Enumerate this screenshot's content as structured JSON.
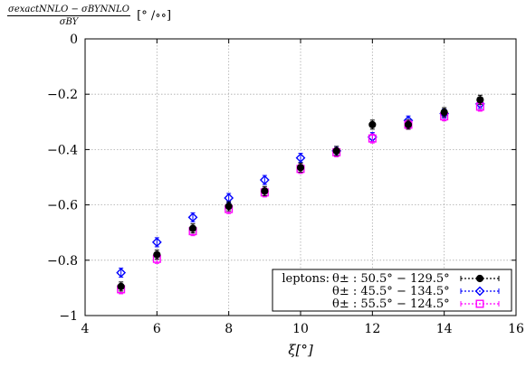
{
  "chart_data": {
    "type": "scatter",
    "ylabel": {
      "numerator": "σexactNNLO − σBYNNLO",
      "denominator": "σBY",
      "unit": "[° /∘∘]"
    },
    "xlabel": "ξ[°]",
    "xlim": [
      4,
      16
    ],
    "ylim": [
      -1,
      0
    ],
    "x_ticks": [
      "4",
      "6",
      "8",
      "10",
      "12",
      "14",
      "16"
    ],
    "y_ticks": [
      "0",
      "−0.2",
      "−0.4",
      "−0.6",
      "−0.8",
      "−1"
    ],
    "grid": true,
    "legend_position": "bottom-right",
    "legend_prefix": "leptons:",
    "series": [
      {
        "name": "θ± : 50.5° − 129.5°",
        "color": "#000000",
        "marker": "filled-circle",
        "x": [
          5,
          6,
          7,
          8,
          9,
          10,
          11,
          12,
          13,
          14,
          15
        ],
        "y": [
          -0.895,
          -0.78,
          -0.685,
          -0.605,
          -0.55,
          -0.465,
          -0.405,
          -0.31,
          -0.31,
          -0.265,
          -0.22
        ]
      },
      {
        "name": "θ± : 45.5° − 134.5°",
        "color": "#0000ff",
        "marker": "open-diamond",
        "x": [
          5,
          6,
          7,
          8,
          9,
          10,
          11,
          12,
          13,
          14,
          15
        ],
        "y": [
          -0.845,
          -0.735,
          -0.645,
          -0.575,
          -0.51,
          -0.43,
          -0.405,
          -0.355,
          -0.295,
          -0.27,
          -0.235
        ]
      },
      {
        "name": "θ± : 55.5° − 124.5°",
        "color": "#ff00ff",
        "marker": "open-square",
        "x": [
          5,
          6,
          7,
          8,
          9,
          10,
          11,
          12,
          13,
          14,
          15
        ],
        "y": [
          -0.905,
          -0.795,
          -0.695,
          -0.615,
          -0.555,
          -0.47,
          -0.41,
          -0.36,
          -0.31,
          -0.28,
          -0.245
        ]
      }
    ]
  }
}
